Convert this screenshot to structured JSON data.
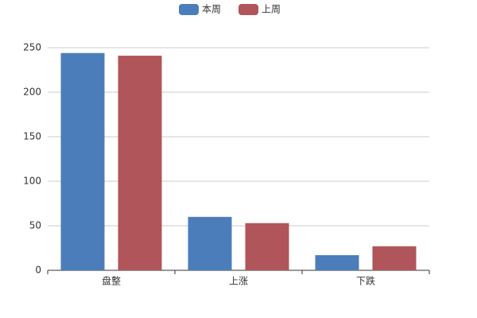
{
  "chart_data": {
    "type": "bar",
    "categories": [
      "盘整",
      "上涨",
      "下跌"
    ],
    "series": [
      {
        "name": "本周",
        "color": "#4b7dbb",
        "values": [
          244,
          60,
          17
        ]
      },
      {
        "name": "上周",
        "color": "#b0555a",
        "values": [
          241,
          53,
          27
        ]
      }
    ],
    "ylim": [
      0,
      250
    ],
    "yticks": [
      0,
      50,
      100,
      150,
      200,
      250
    ],
    "grid": true,
    "legend": "top"
  }
}
